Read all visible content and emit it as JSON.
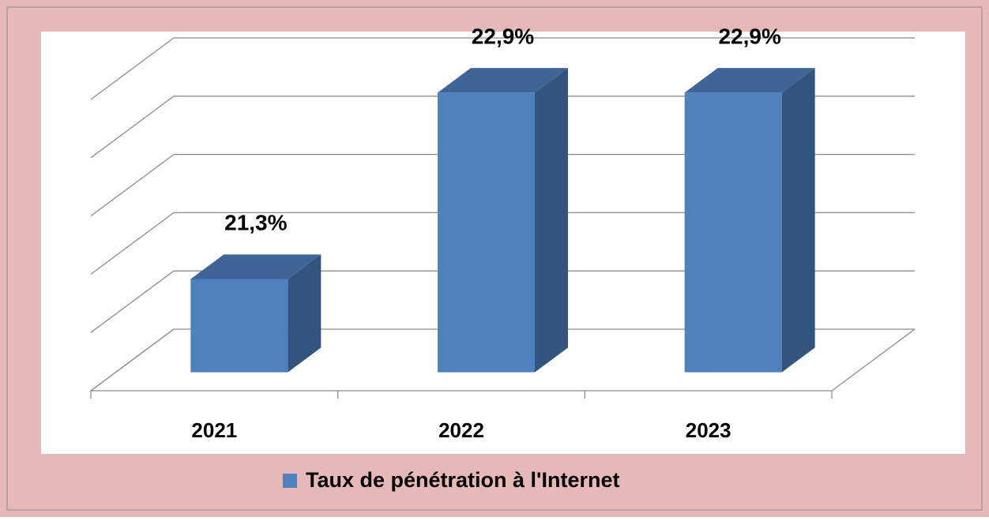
{
  "chart_data": {
    "type": "bar3d",
    "categories": [
      "2021",
      "2022",
      "2023"
    ],
    "series": [
      {
        "name": "Taux de pénétration à l'Internet",
        "color": "#4f81bd",
        "values": [
          21.3,
          22.9,
          22.9
        ],
        "value_labels": [
          "21,3%",
          "22,9%",
          "22,9%"
        ]
      }
    ],
    "ylim": [
      20.5,
      23
    ],
    "yticks": [
      20.5,
      21,
      21.5,
      22,
      22.5,
      23
    ],
    "grid": true,
    "legend": "bottom"
  }
}
